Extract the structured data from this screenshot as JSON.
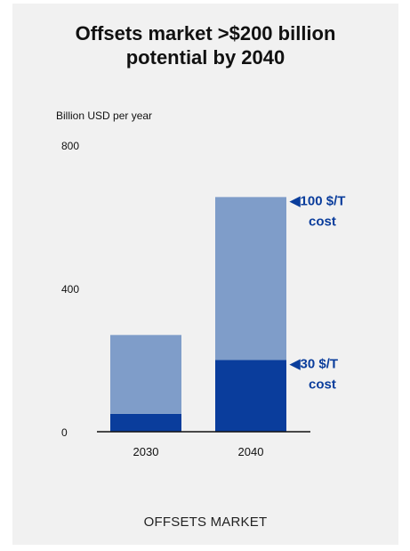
{
  "title": "Offsets market >$200 billion\npotential by 2040",
  "footer_label": "OFFSETS MARKET",
  "colors": {
    "background": "#f1f1f1",
    "series_30": "#0a3d9c",
    "series_100": "#7f9dc9",
    "annotation": "#0a3d9c",
    "axis": "#111111"
  },
  "chart_data": {
    "type": "bar",
    "stacked": true,
    "title": "Offsets market >$200 billion potential by 2040",
    "ylabel": "Billion USD per year",
    "xlabel": "OFFSETS MARKET",
    "ylim": [
      0,
      800
    ],
    "yticks": [
      0,
      400,
      800
    ],
    "categories": [
      "2030",
      "2040"
    ],
    "series": [
      {
        "values": [
          50,
          200
        ],
        "color": "#0a3d9c"
      },
      {
        "values": [
          220,
          455
        ],
        "color": "#7f9dc9"
      }
    ],
    "totals": [
      270,
      655
    ],
    "annotations": [
      {
        "label_line1": "◀100 $/T",
        "label_line2": "cost",
        "value": 655
      },
      {
        "label_line1": "◀30 $/T",
        "label_line2": "cost",
        "value": 200
      }
    ],
    "grid": false,
    "legend": "none"
  }
}
